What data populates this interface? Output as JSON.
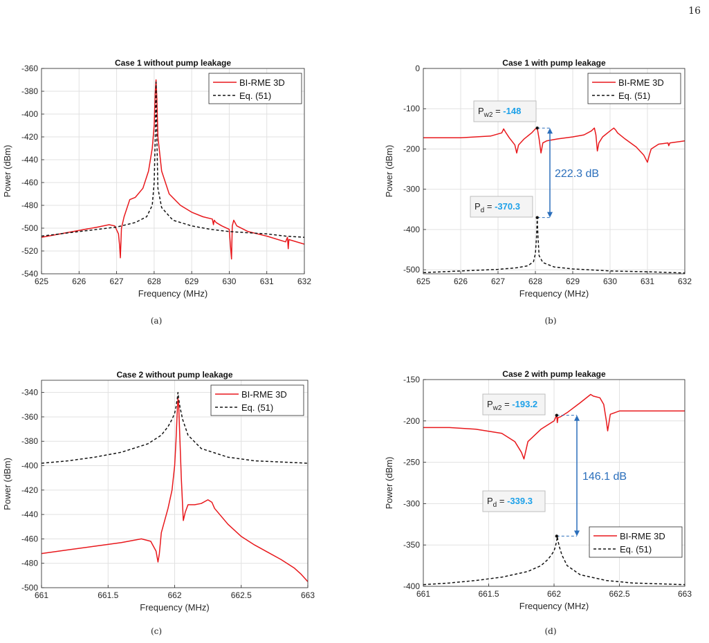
{
  "page_number": "16",
  "captions": [
    "(a)",
    "(b)",
    "(c)",
    "(d)"
  ],
  "colors": {
    "bi_rme": "#e8171b",
    "eq": "#111111",
    "annotation": "#2a6ebb",
    "value": "#1ca0e8"
  },
  "chart_data": [
    {
      "type": "line",
      "title": "Case 1 without pump leakage",
      "xlabel": "Frequency (MHz)",
      "ylabel": "Power (dBm)",
      "xlim": [
        625,
        632
      ],
      "ylim": [
        -540,
        -360
      ],
      "xticks": [
        625,
        626,
        627,
        628,
        629,
        630,
        631,
        632
      ],
      "yticks": [
        -540,
        -520,
        -500,
        -480,
        -460,
        -440,
        -420,
        -400,
        -380,
        -360
      ],
      "grid": true,
      "legend_position": "top-right",
      "legend": [
        "BI-RME 3D",
        "Eq. (51)"
      ],
      "series": [
        {
          "name": "BI-RME 3D",
          "style": "solid",
          "x": [
            625,
            625.5,
            626,
            626.5,
            626.8,
            626.95,
            627.05,
            627.08,
            627.1,
            627.13,
            627.2,
            627.35,
            627.5,
            627.7,
            627.85,
            627.95,
            628.0,
            628.03,
            628.05,
            628.07,
            628.1,
            628.2,
            628.4,
            628.7,
            629.0,
            629.3,
            629.55,
            629.58,
            629.6,
            629.65,
            629.8,
            630.0,
            630.03,
            630.06,
            630.08,
            630.12,
            630.2,
            630.5,
            631.0,
            631.5,
            631.55,
            631.57,
            631.59,
            632
          ],
          "values": [
            -508,
            -505,
            -502,
            -499,
            -497,
            -498,
            -505,
            -515,
            -526,
            -500,
            -490,
            -475,
            -473,
            -465,
            -450,
            -430,
            -410,
            -380,
            -370,
            -385,
            -420,
            -450,
            -470,
            -480,
            -486,
            -490,
            -492,
            -497,
            -493,
            -495,
            -498,
            -501,
            -515,
            -527,
            -498,
            -493,
            -498,
            -503,
            -507,
            -512,
            -508,
            -518,
            -510,
            -514
          ]
        },
        {
          "name": "Eq. (51)",
          "style": "dashed",
          "x": [
            625,
            626,
            626.5,
            627,
            627.5,
            627.8,
            627.95,
            628.0,
            628.03,
            628.05,
            628.07,
            628.1,
            628.2,
            628.5,
            629,
            629.5,
            630,
            630.5,
            631,
            631.5,
            632
          ],
          "values": [
            -507,
            -503,
            -501,
            -499,
            -495,
            -490,
            -480,
            -460,
            -420,
            -372,
            -420,
            -465,
            -482,
            -493,
            -498,
            -501,
            -503,
            -504,
            -505,
            -507,
            -508
          ]
        }
      ]
    },
    {
      "type": "line",
      "title": "Case 1 with pump leakage",
      "xlabel": "Frequency (MHz)",
      "ylabel": "Power (dBm)",
      "xlim": [
        625,
        632
      ],
      "ylim": [
        -510,
        0
      ],
      "xticks": [
        625,
        626,
        627,
        628,
        629,
        630,
        631,
        632
      ],
      "yticks": [
        -500,
        -400,
        -300,
        -200,
        -100,
        0
      ],
      "grid": true,
      "legend_position": "top-right",
      "legend": [
        "BI-RME 3D",
        "Eq. (51)"
      ],
      "series": [
        {
          "name": "BI-RME 3D",
          "style": "solid",
          "x": [
            625,
            626,
            626.8,
            627.1,
            627.15,
            627.2,
            627.3,
            627.45,
            627.5,
            627.55,
            627.7,
            627.9,
            628.0,
            628.05,
            628.1,
            628.15,
            628.2,
            628.3,
            628.6,
            629.0,
            629.3,
            629.5,
            629.58,
            629.62,
            629.66,
            629.7,
            629.8,
            630.0,
            630.1,
            630.15,
            630.2,
            630.4,
            630.7,
            630.9,
            631.0,
            631.05,
            631.1,
            631.3,
            631.55,
            631.57,
            631.6,
            632
          ],
          "values": [
            -172,
            -172,
            -168,
            -160,
            -150,
            -158,
            -172,
            -190,
            -210,
            -190,
            -175,
            -160,
            -150,
            -148,
            -175,
            -210,
            -185,
            -180,
            -175,
            -170,
            -165,
            -155,
            -148,
            -165,
            -205,
            -185,
            -170,
            -155,
            -148,
            -153,
            -160,
            -175,
            -195,
            -215,
            -233,
            -215,
            -200,
            -188,
            -185,
            -192,
            -185,
            -180
          ]
        },
        {
          "name": "Eq. (51)",
          "style": "dashed",
          "x": [
            625,
            626,
            627,
            627.5,
            627.8,
            627.95,
            628.0,
            628.03,
            628.05,
            628.07,
            628.1,
            628.2,
            628.5,
            629,
            630,
            631,
            632
          ],
          "values": [
            -507,
            -503,
            -499,
            -495,
            -490,
            -480,
            -460,
            -420,
            -370,
            -420,
            -465,
            -482,
            -493,
            -498,
            -503,
            -505,
            -508
          ]
        }
      ],
      "annotations": [
        {
          "label": "P",
          "sub": "w2",
          "eq": " = ",
          "value": "-148",
          "x": 628.05,
          "y": -148
        },
        {
          "label": "P",
          "sub": "d",
          "eq": " = ",
          "value": "-370.3",
          "x": 628.05,
          "y": -370.3
        }
      ],
      "arrow_label": "222.3 dB"
    },
    {
      "type": "line",
      "title": "Case 2 without pump leakage",
      "xlabel": "Frequency (MHz)",
      "ylabel": "Power (dBm)",
      "xlim": [
        661,
        663
      ],
      "ylim": [
        -500,
        -330
      ],
      "xticks": [
        661,
        661.5,
        662,
        662.5,
        663
      ],
      "yticks": [
        -500,
        -480,
        -460,
        -440,
        -420,
        -400,
        -380,
        -360,
        -340
      ],
      "grid": true,
      "legend_position": "top-right",
      "legend": [
        "BI-RME 3D",
        "Eq. (51)"
      ],
      "series": [
        {
          "name": "BI-RME 3D",
          "style": "solid",
          "x": [
            661,
            661.2,
            661.4,
            661.6,
            661.75,
            661.82,
            661.86,
            661.875,
            661.885,
            661.9,
            661.95,
            661.98,
            662.0,
            662.01,
            662.02,
            662.025,
            662.03,
            662.05,
            662.065,
            662.08,
            662.1,
            662.15,
            662.2,
            662.25,
            662.28,
            662.3,
            662.4,
            662.5,
            662.6,
            662.7,
            662.8,
            662.9,
            662.95,
            663
          ],
          "values": [
            -472,
            -469,
            -466,
            -463,
            -460,
            -462,
            -470,
            -479,
            -472,
            -455,
            -435,
            -420,
            -400,
            -380,
            -355,
            -345,
            -350,
            -410,
            -445,
            -438,
            -432,
            -432,
            -431,
            -428,
            -430,
            -435,
            -448,
            -458,
            -465,
            -471,
            -477,
            -484,
            -489,
            -495
          ]
        },
        {
          "name": "Eq. (51)",
          "style": "dashed",
          "x": [
            661,
            661.2,
            661.4,
            661.6,
            661.8,
            661.9,
            661.95,
            661.98,
            662.0,
            662.01,
            662.02,
            662.025,
            662.03,
            662.04,
            662.06,
            662.1,
            662.2,
            662.4,
            662.6,
            662.8,
            663
          ],
          "values": [
            -398,
            -396,
            -393,
            -389,
            -382,
            -375,
            -368,
            -362,
            -357,
            -352,
            -345,
            -340,
            -345,
            -352,
            -362,
            -375,
            -386,
            -393,
            -396,
            -397,
            -398
          ]
        }
      ]
    },
    {
      "type": "line",
      "title": "Case 2 with pump leakage",
      "xlabel": "Frequency (MHz)",
      "ylabel": "Power (dBm)",
      "xlim": [
        661,
        663
      ],
      "ylim": [
        -400,
        -150
      ],
      "xticks": [
        661,
        661.5,
        662,
        662.5,
        663
      ],
      "yticks": [
        -400,
        -350,
        -300,
        -250,
        -200,
        -150
      ],
      "grid": true,
      "legend_position": "bottom-right",
      "legend": [
        "BI-RME 3D",
        "Eq. (51)"
      ],
      "series": [
        {
          "name": "BI-RME 3D",
          "style": "solid",
          "x": [
            661,
            661.2,
            661.4,
            661.6,
            661.7,
            661.75,
            661.77,
            661.8,
            661.9,
            662.0,
            662.02,
            662.025,
            662.03,
            662.05,
            662.1,
            662.2,
            662.28,
            662.3,
            662.35,
            662.38,
            662.4,
            662.41,
            662.43,
            662.5,
            662.7,
            663
          ],
          "values": [
            -208,
            -208,
            -210,
            -215,
            -225,
            -238,
            -246,
            -225,
            -210,
            -200,
            -193,
            -202,
            -196,
            -195,
            -190,
            -178,
            -168,
            -170,
            -172,
            -180,
            -200,
            -212,
            -192,
            -188,
            -188,
            -188
          ]
        },
        {
          "name": "Eq. (51)",
          "style": "dashed",
          "x": [
            661,
            661.2,
            661.4,
            661.6,
            661.8,
            661.9,
            661.95,
            661.98,
            662.0,
            662.01,
            662.02,
            662.025,
            662.03,
            662.04,
            662.06,
            662.1,
            662.2,
            662.4,
            662.6,
            662.8,
            663
          ],
          "values": [
            -398,
            -396,
            -393,
            -389,
            -382,
            -375,
            -368,
            -362,
            -357,
            -352,
            -345,
            -340,
            -345,
            -352,
            -362,
            -375,
            -386,
            -393,
            -396,
            -397,
            -398
          ]
        }
      ],
      "annotations": [
        {
          "label": "P",
          "sub": "w2",
          "eq": " = ",
          "value": "-193.2",
          "x": 662.02,
          "y": -193.2
        },
        {
          "label": "P",
          "sub": "d",
          "eq": " = ",
          "value": "-339.3",
          "x": 662.02,
          "y": -339.3
        }
      ],
      "arrow_label": "146.1 dB"
    }
  ]
}
